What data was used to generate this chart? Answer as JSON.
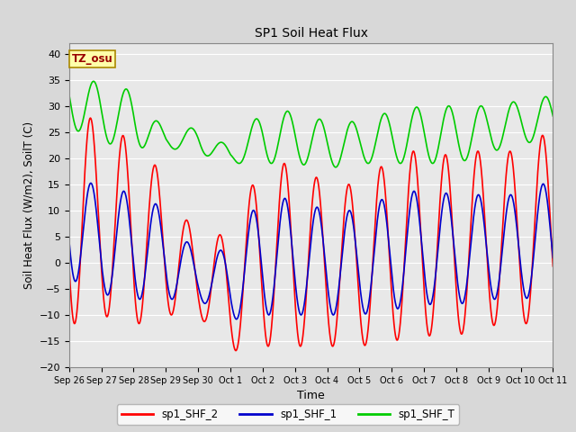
{
  "title": "SP1 Soil Heat Flux",
  "xlabel": "Time",
  "ylabel": "Soil Heat Flux (W/m2), SoilT (C)",
  "ylim": [
    -20,
    42
  ],
  "yticks": [
    -20,
    -15,
    -10,
    -5,
    0,
    5,
    10,
    15,
    20,
    25,
    30,
    35,
    40
  ],
  "bg_color": "#d8d8d8",
  "plot_bg": "#e8e8e8",
  "tz_label": "TZ_osu",
  "legend": [
    "sp1_SHF_2",
    "sp1_SHF_1",
    "sp1_SHF_T"
  ],
  "colors": [
    "#ff0000",
    "#0000cc",
    "#00cc00"
  ],
  "line_width": 1.2,
  "tick_labels": [
    "Sep 26",
    "Sep 27",
    "Sep 28",
    "Sep 29",
    "Sep 30",
    "Oct 1",
    "Oct 2",
    "Oct 3",
    "Oct 4",
    "Oct 5",
    "Oct 6",
    "Oct 7",
    "Oct 8",
    "Oct 9",
    "Oct 10",
    "Oct 11"
  ],
  "figsize": [
    6.4,
    4.8
  ],
  "dpi": 100
}
